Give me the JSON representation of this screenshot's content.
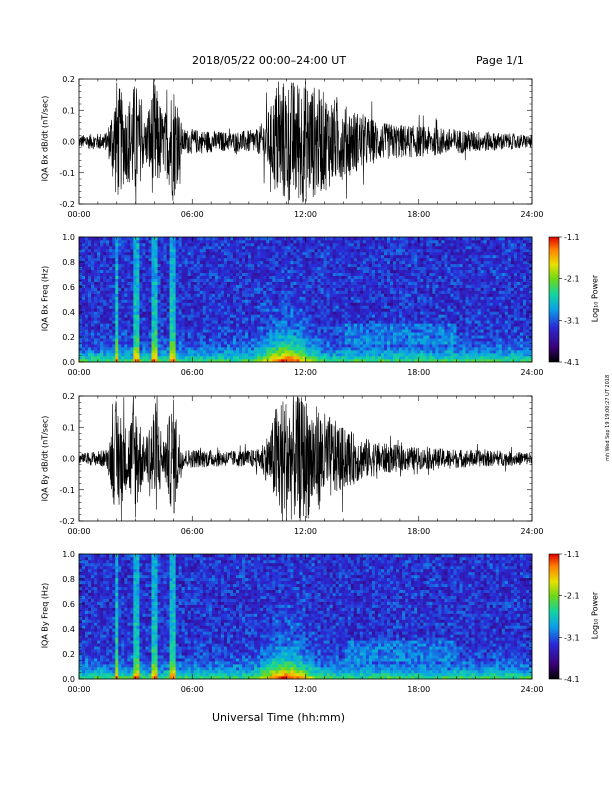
{
  "header": {
    "title": "2018/05/22  00:00–24:00 UT",
    "page": "Page 1/1"
  },
  "xlabel": "Universal Time (hh:mm)",
  "footer": "mh Wed Sep 19 19:00:27 UT 2018",
  "colormap": [
    "#000000",
    "#3a0078",
    "#2a2ad6",
    "#0aa0e8",
    "#13d4a0",
    "#6ad81a",
    "#e8e000",
    "#ff8000",
    "#e00000"
  ],
  "chart_data": [
    {
      "type": "line",
      "ylabel": "IQA Bx dB/dt (nT/sec)",
      "xlim_hours": [
        0,
        24
      ],
      "ylim": [
        -0.2,
        0.2
      ],
      "x_ticks": [
        "00:00",
        "06:00",
        "12:00",
        "18:00",
        "24:00"
      ],
      "y_ticks": [
        "0.2",
        "0.1",
        "0.0",
        "-0.1",
        "-0.2"
      ],
      "envelope_hours": [
        0,
        1.5,
        2.0,
        2.5,
        3.0,
        3.5,
        4.0,
        4.5,
        5.0,
        5.5,
        6,
        8,
        9.5,
        10.2,
        10.5,
        11,
        12,
        13,
        14,
        15,
        16,
        18,
        20,
        22,
        24
      ],
      "envelope_amplitude": [
        0.02,
        0.03,
        0.2,
        0.12,
        0.2,
        0.06,
        0.2,
        0.08,
        0.2,
        0.04,
        0.04,
        0.03,
        0.04,
        0.12,
        0.2,
        0.2,
        0.2,
        0.16,
        0.12,
        0.09,
        0.06,
        0.05,
        0.04,
        0.03,
        0.02
      ]
    },
    {
      "type": "heatmap",
      "ylabel": "IQA Bx Freq (Hz)",
      "xlim_hours": [
        0,
        24
      ],
      "ylim": [
        0,
        1.0
      ],
      "x_ticks": [
        "00:00",
        "06:00",
        "12:00",
        "18:00",
        "24:00"
      ],
      "y_ticks": [
        "1.0",
        "0.8",
        "0.6",
        "0.4",
        "0.2",
        "0.0"
      ],
      "colorbar_label": "Log₁₀ Power",
      "colorbar_ticks": [
        "-1.1",
        "-2.1",
        "-3.1",
        "-4.1"
      ],
      "clim": [
        -4.1,
        -1.1
      ]
    },
    {
      "type": "line",
      "ylabel": "IQA By dB/dt (nT/sec)",
      "xlim_hours": [
        0,
        24
      ],
      "ylim": [
        -0.2,
        0.2
      ],
      "x_ticks": [
        "00:00",
        "06:00",
        "12:00",
        "18:00",
        "24:00"
      ],
      "y_ticks": [
        "0.2",
        "0.1",
        "0.0",
        "-0.1",
        "-0.2"
      ],
      "envelope_hours": [
        0,
        1.5,
        2.0,
        2.5,
        3.0,
        3.5,
        4.0,
        4.5,
        5.0,
        5.5,
        6,
        8,
        9.5,
        10.2,
        10.5,
        11,
        12,
        13,
        14,
        15,
        16,
        18,
        20,
        22,
        24
      ],
      "envelope_amplitude": [
        0.015,
        0.03,
        0.2,
        0.1,
        0.2,
        0.05,
        0.2,
        0.06,
        0.2,
        0.03,
        0.03,
        0.025,
        0.03,
        0.1,
        0.2,
        0.2,
        0.2,
        0.15,
        0.1,
        0.07,
        0.05,
        0.035,
        0.03,
        0.025,
        0.02
      ]
    },
    {
      "type": "heatmap",
      "ylabel": "IQA By Freq (Hz)",
      "xlim_hours": [
        0,
        24
      ],
      "ylim": [
        0,
        1.0
      ],
      "x_ticks": [
        "00:00",
        "06:00",
        "12:00",
        "18:00",
        "24:00"
      ],
      "y_ticks": [
        "1.0",
        "0.8",
        "0.6",
        "0.4",
        "0.2",
        "0.0"
      ],
      "colorbar_label": "Log₁₀ Power",
      "colorbar_ticks": [
        "-1.1",
        "-2.1",
        "-3.1",
        "-4.1"
      ],
      "clim": [
        -4.1,
        -1.1
      ]
    }
  ]
}
